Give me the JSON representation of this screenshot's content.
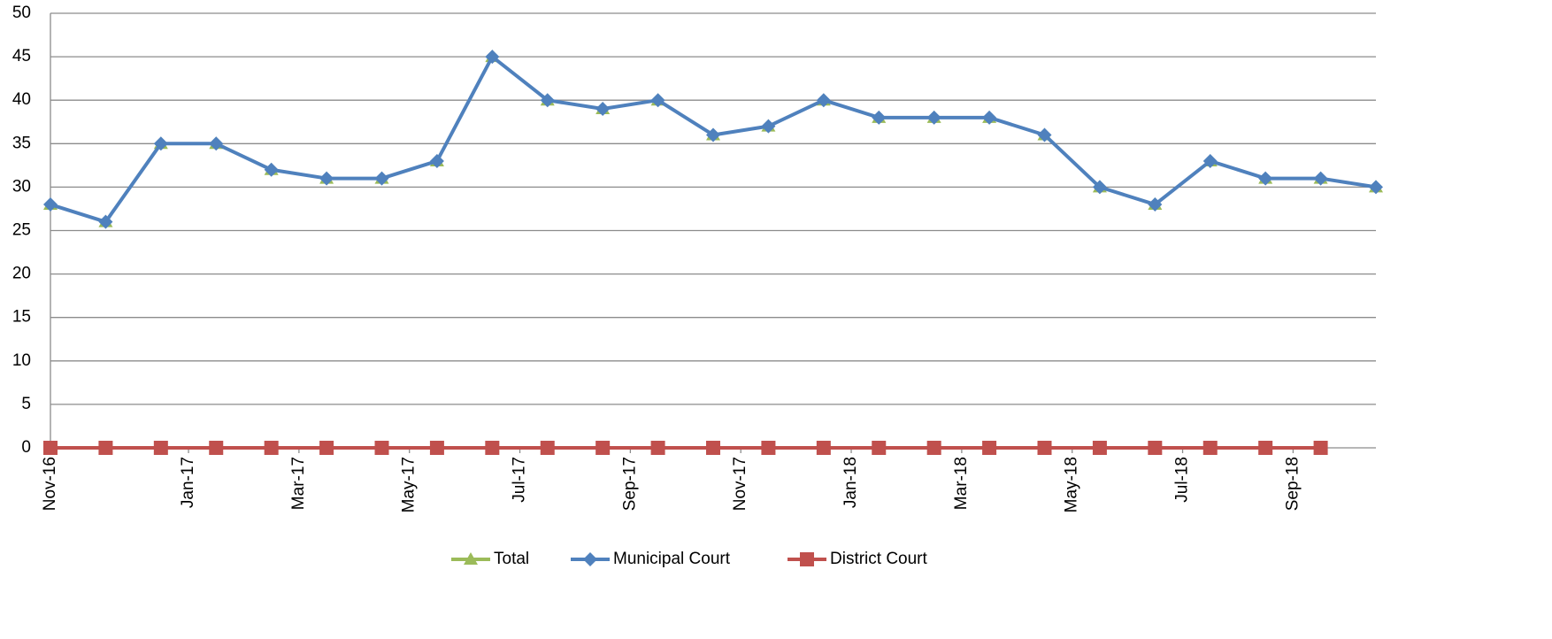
{
  "chart_data": {
    "type": "line",
    "categories": [
      null,
      null,
      null,
      null,
      null,
      null,
      null,
      null,
      null,
      null,
      null,
      null,
      null,
      null,
      null,
      null,
      null,
      null,
      null,
      null,
      null,
      null,
      null,
      null,
      null
    ],
    "xlim": [
      0,
      24
    ],
    "xticks": [
      {
        "value": 0,
        "label": "Nov-16"
      },
      {
        "value": 2.5,
        "label": "Jan-17"
      },
      {
        "value": 4.5,
        "label": "Mar-17"
      },
      {
        "value": 6.5,
        "label": "May-17"
      },
      {
        "value": 8.5,
        "label": "Jul-17"
      },
      {
        "value": 10.5,
        "label": "Sep-17"
      },
      {
        "value": 12.5,
        "label": "Nov-17"
      },
      {
        "value": 14.5,
        "label": "Jan-18"
      },
      {
        "value": 16.5,
        "label": "Mar-18"
      },
      {
        "value": 18.5,
        "label": "May-18"
      },
      {
        "value": 20.5,
        "label": "Jul-18"
      },
      {
        "value": 22.5,
        "label": "Sep-18"
      }
    ],
    "ylim": [
      0,
      50
    ],
    "yticks": [
      0,
      5,
      10,
      15,
      20,
      25,
      30,
      35,
      40,
      45,
      50
    ],
    "grid": true,
    "legend": "bottom",
    "series": [
      {
        "name": "Total",
        "color": "#9bbb59",
        "marker": "triangle",
        "values": [
          28,
          26,
          35,
          35,
          32,
          31,
          31,
          33,
          45,
          40,
          39,
          40,
          36,
          37,
          40,
          38,
          38,
          38,
          36,
          30,
          28,
          33,
          31,
          31,
          30
        ]
      },
      {
        "name": "Municipal Court",
        "color": "#4f81bd",
        "marker": "diamond",
        "values": [
          28,
          26,
          35,
          35,
          32,
          31,
          31,
          33,
          45,
          40,
          39,
          40,
          36,
          37,
          40,
          38,
          38,
          38,
          36,
          30,
          28,
          33,
          31,
          31,
          30
        ]
      },
      {
        "name": "District Court",
        "color": "#c0504d",
        "marker": "square",
        "values": [
          0,
          0,
          0,
          0,
          0,
          0,
          0,
          0,
          0,
          0,
          0,
          0,
          0,
          0,
          0,
          0,
          0,
          0,
          0,
          0,
          0,
          0,
          0,
          0,
          null
        ]
      }
    ]
  }
}
